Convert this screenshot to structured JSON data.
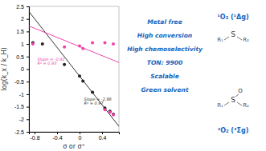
{
  "chart_data": {
    "type": "scatter",
    "xlabel": "σ or σ⁺",
    "ylabel": "log(k_x / k_H)",
    "xlim": [
      -0.9,
      0.7
    ],
    "xticks": [
      -0.8,
      -0.4,
      0,
      0.4
    ],
    "ylim": [
      -2.5,
      2.5
    ],
    "yticks": [
      -2.5,
      -2,
      -1.5,
      -1,
      -0.5,
      0,
      0.5,
      1,
      1.5,
      2,
      2.5
    ],
    "series": [
      {
        "type": "scatter",
        "color": "#222222",
        "x": [
          -0.83,
          -0.66,
          -0.27,
          0.0,
          0.06,
          0.23,
          0.45,
          0.54,
          0.6
        ],
        "values": [
          1.05,
          1.0,
          0.18,
          -0.28,
          -0.48,
          -0.92,
          -1.55,
          -1.68,
          -1.8
        ]
      },
      {
        "type": "scatter",
        "color": "#ee44aa",
        "x": [
          -0.83,
          -0.27,
          0.0,
          0.06,
          0.23,
          0.45,
          0.6
        ],
        "values": [
          1.0,
          0.88,
          0.92,
          0.82,
          1.05,
          1.05,
          1.0
        ]
      },
      {
        "type": "scatter",
        "color": "#ee44aa",
        "x": [
          0.45,
          0.54,
          0.6
        ],
        "values": [
          -1.62,
          -1.72,
          -1.82
        ]
      },
      {
        "type": "line",
        "color": "#333333",
        "x": [
          -0.9,
          0.7
        ],
        "values": [
          2.294,
          -2.282
        ]
      },
      {
        "type": "line",
        "color": "#ee44aa",
        "x": [
          -0.9,
          0.7
        ],
        "values": [
          1.719,
          0.263
        ]
      }
    ],
    "annotations": [
      {
        "text": "Slope = -0.91",
        "x": -0.75,
        "y": 0.35,
        "color": "#ee44aa"
      },
      {
        "text": "R² = 0.93",
        "x": -0.75,
        "y": 0.18,
        "color": "#ee44aa"
      },
      {
        "text": "Slope = -2.86",
        "x": 0.08,
        "y": -1.25,
        "color": "#333333"
      },
      {
        "text": "R² = 0.97",
        "x": 0.08,
        "y": -1.42,
        "color": "#333333"
      },
      {
        "text": "¹O₂ (¹Δg)",
        "color": "#1565c0"
      },
      {
        "text": "R₁",
        "color": "#555555"
      },
      {
        "text": "S",
        "color": "#333333"
      },
      {
        "text": "R₂",
        "color": "#555555"
      },
      {
        "text": "Metal free",
        "color": "#1565c0"
      },
      {
        "text": "High conversion",
        "color": "#1565c0"
      },
      {
        "text": "High chemoselectivity",
        "color": "#1565c0"
      },
      {
        "text": "TON: 9900",
        "color": "#1565c0"
      },
      {
        "text": "Scalable",
        "color": "#1565c0"
      },
      {
        "text": "Green solvent",
        "color": "#1565c0"
      },
      {
        "text": "O",
        "color": "#333333"
      },
      {
        "text": "R₁",
        "color": "#555555"
      },
      {
        "text": "S",
        "color": "#333333"
      },
      {
        "text": "R₂",
        "color": "#555555"
      },
      {
        "text": "³O₂ (³Σg)",
        "color": "#1565c0"
      }
    ]
  }
}
